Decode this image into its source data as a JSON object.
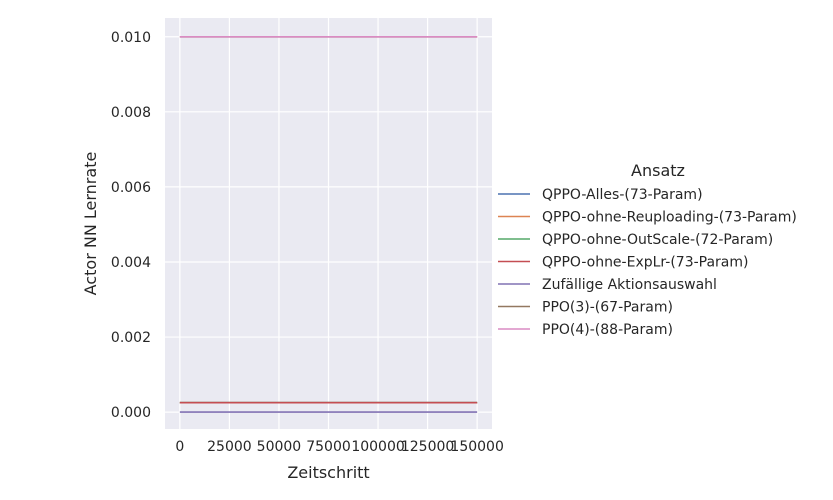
{
  "chart_data": {
    "type": "line",
    "xlabel": "Zeitschritt",
    "ylabel": "Actor NN Lernrate",
    "xlim": [
      -7500,
      157500
    ],
    "ylim": [
      -0.00045,
      0.0105
    ],
    "xticks": [
      0,
      25000,
      50000,
      75000,
      100000,
      125000,
      150000
    ],
    "xtick_labels": [
      "0",
      "25000",
      "50000",
      "75000",
      "100000",
      "125000",
      "150000"
    ],
    "yticks": [
      0.0,
      0.002,
      0.004,
      0.006,
      0.008,
      0.01
    ],
    "ytick_labels": [
      "0.000",
      "0.002",
      "0.004",
      "0.006",
      "0.008",
      "0.010"
    ],
    "grid": true,
    "background": "#eaeaf2",
    "legend_title": "Ansatz",
    "legend_position": "right",
    "series": [
      {
        "name": "QPPO-Alles-(73-Param)",
        "color": "#4c72b0",
        "x": [
          0,
          150000
        ],
        "y": [
          0.00025,
          0.00025
        ]
      },
      {
        "name": "QPPO-ohne-Reuploading-(73-Param)",
        "color": "#dd8452",
        "x": [
          0,
          150000
        ],
        "y": [
          0.00025,
          0.00025
        ]
      },
      {
        "name": "QPPO-ohne-OutScale-(72-Param)",
        "color": "#55a868",
        "x": [
          0,
          150000
        ],
        "y": [
          0.00025,
          0.00025
        ]
      },
      {
        "name": "QPPO-ohne-ExpLr-(73-Param)",
        "color": "#c44e52",
        "x": [
          0,
          150000
        ],
        "y": [
          0.00025,
          0.00025
        ]
      },
      {
        "name": "Zufällige Aktionsauswahl",
        "color": "#8172b3",
        "x": [
          0,
          150000
        ],
        "y": [
          0.0,
          0.0
        ]
      },
      {
        "name": "PPO(3)-(67-Param)",
        "color": "#937860",
        "x": [
          0,
          150000
        ],
        "y": [
          0.01,
          0.01
        ]
      },
      {
        "name": "PPO(4)-(88-Param)",
        "color": "#da8bc3",
        "x": [
          0,
          150000
        ],
        "y": [
          0.01,
          0.01
        ]
      }
    ]
  }
}
